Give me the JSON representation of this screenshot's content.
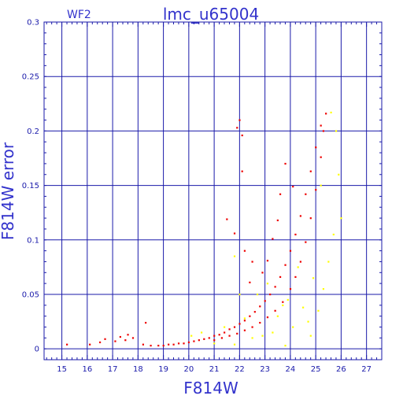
{
  "chart_data": {
    "type": "scatter",
    "title": "lmc_u65004",
    "subtitle": "WF2",
    "xlabel": "F814W",
    "ylabel": "F814W error",
    "xlim": [
      14.3,
      27.6
    ],
    "ylim": [
      -0.01,
      0.3
    ],
    "x_ticks": [
      15,
      16,
      17,
      18,
      19,
      20,
      21,
      22,
      23,
      24,
      25,
      26,
      27
    ],
    "y_ticks": [
      0,
      0.05,
      0.1,
      0.15,
      0.2,
      0.25,
      0.3
    ],
    "grid": true,
    "series": [
      {
        "color": "#ee0000",
        "points": [
          [
            15.2,
            0.004
          ],
          [
            16.1,
            0.004
          ],
          [
            16.5,
            0.006
          ],
          [
            16.7,
            0.009
          ],
          [
            17.1,
            0.007
          ],
          [
            17.3,
            0.011
          ],
          [
            17.5,
            0.008
          ],
          [
            17.6,
            0.013
          ],
          [
            17.8,
            0.01
          ],
          [
            18.2,
            0.004
          ],
          [
            18.3,
            0.024
          ],
          [
            18.5,
            0.003
          ],
          [
            18.8,
            0.003
          ],
          [
            19.0,
            0.003
          ],
          [
            19.2,
            0.004
          ],
          [
            19.4,
            0.004
          ],
          [
            19.6,
            0.005
          ],
          [
            19.8,
            0.005
          ],
          [
            20.0,
            0.006
          ],
          [
            20.2,
            0.007
          ],
          [
            20.4,
            0.008
          ],
          [
            20.6,
            0.009
          ],
          [
            20.8,
            0.01
          ],
          [
            21.0,
            0.012
          ],
          [
            21.2,
            0.013
          ],
          [
            21.4,
            0.015
          ],
          [
            21.6,
            0.018
          ],
          [
            21.8,
            0.02
          ],
          [
            22.0,
            0.023
          ],
          [
            22.2,
            0.026
          ],
          [
            22.4,
            0.03
          ],
          [
            22.6,
            0.034
          ],
          [
            22.8,
            0.039
          ],
          [
            23.0,
            0.044
          ],
          [
            23.2,
            0.05
          ],
          [
            23.4,
            0.057
          ],
          [
            23.6,
            0.066
          ],
          [
            23.8,
            0.077
          ],
          [
            24.0,
            0.09
          ],
          [
            24.2,
            0.105
          ],
          [
            24.4,
            0.122
          ],
          [
            24.6,
            0.142
          ],
          [
            24.8,
            0.163
          ],
          [
            25.0,
            0.185
          ],
          [
            25.2,
            0.205
          ],
          [
            25.4,
            0.216
          ],
          [
            21.0,
            0.008
          ],
          [
            21.3,
            0.01
          ],
          [
            21.6,
            0.012
          ],
          [
            21.9,
            0.014
          ],
          [
            22.2,
            0.017
          ],
          [
            22.5,
            0.02
          ],
          [
            22.8,
            0.024
          ],
          [
            23.1,
            0.029
          ],
          [
            23.4,
            0.035
          ],
          [
            23.7,
            0.043
          ],
          [
            24.0,
            0.055
          ],
          [
            24.2,
            0.066
          ],
          [
            24.4,
            0.08
          ],
          [
            24.6,
            0.098
          ],
          [
            24.8,
            0.12
          ],
          [
            25.0,
            0.146
          ],
          [
            25.2,
            0.176
          ],
          [
            25.3,
            0.2
          ],
          [
            21.9,
            0.203
          ],
          [
            22.0,
            0.21
          ],
          [
            22.1,
            0.196
          ],
          [
            22.1,
            0.163
          ],
          [
            21.5,
            0.119
          ],
          [
            21.8,
            0.106
          ],
          [
            22.2,
            0.09
          ],
          [
            22.5,
            0.08
          ],
          [
            22.9,
            0.07
          ],
          [
            23.3,
            0.101
          ],
          [
            23.6,
            0.142
          ],
          [
            23.8,
            0.17
          ],
          [
            24.1,
            0.149
          ],
          [
            22.4,
            0.061
          ],
          [
            23.1,
            0.081
          ],
          [
            23.5,
            0.118
          ]
        ]
      },
      {
        "color": "#ffff00",
        "points": [
          [
            20.1,
            0.012
          ],
          [
            20.5,
            0.015
          ],
          [
            21.0,
            0.005
          ],
          [
            21.4,
            0.02
          ],
          [
            21.8,
            0.004
          ],
          [
            22.2,
            0.028
          ],
          [
            22.5,
            0.01
          ],
          [
            22.7,
            0.05
          ],
          [
            22.9,
            0.012
          ],
          [
            23.1,
            0.06
          ],
          [
            23.3,
            0.015
          ],
          [
            23.5,
            0.03
          ],
          [
            23.7,
            0.04
          ],
          [
            23.9,
            0.045
          ],
          [
            24.1,
            0.02
          ],
          [
            24.3,
            0.075
          ],
          [
            24.5,
            0.038
          ],
          [
            24.7,
            0.025
          ],
          [
            24.9,
            0.065
          ],
          [
            25.1,
            0.035
          ],
          [
            25.3,
            0.055
          ],
          [
            25.5,
            0.08
          ],
          [
            25.7,
            0.105
          ],
          [
            25.9,
            0.16
          ],
          [
            26.0,
            0.12
          ],
          [
            25.8,
            0.2
          ],
          [
            25.6,
            0.217
          ],
          [
            25.2,
            0.15
          ],
          [
            24.8,
            0.012
          ],
          [
            22.0,
            0.05
          ],
          [
            21.8,
            0.085
          ],
          [
            23.8,
            0.003
          ]
        ]
      }
    ]
  }
}
